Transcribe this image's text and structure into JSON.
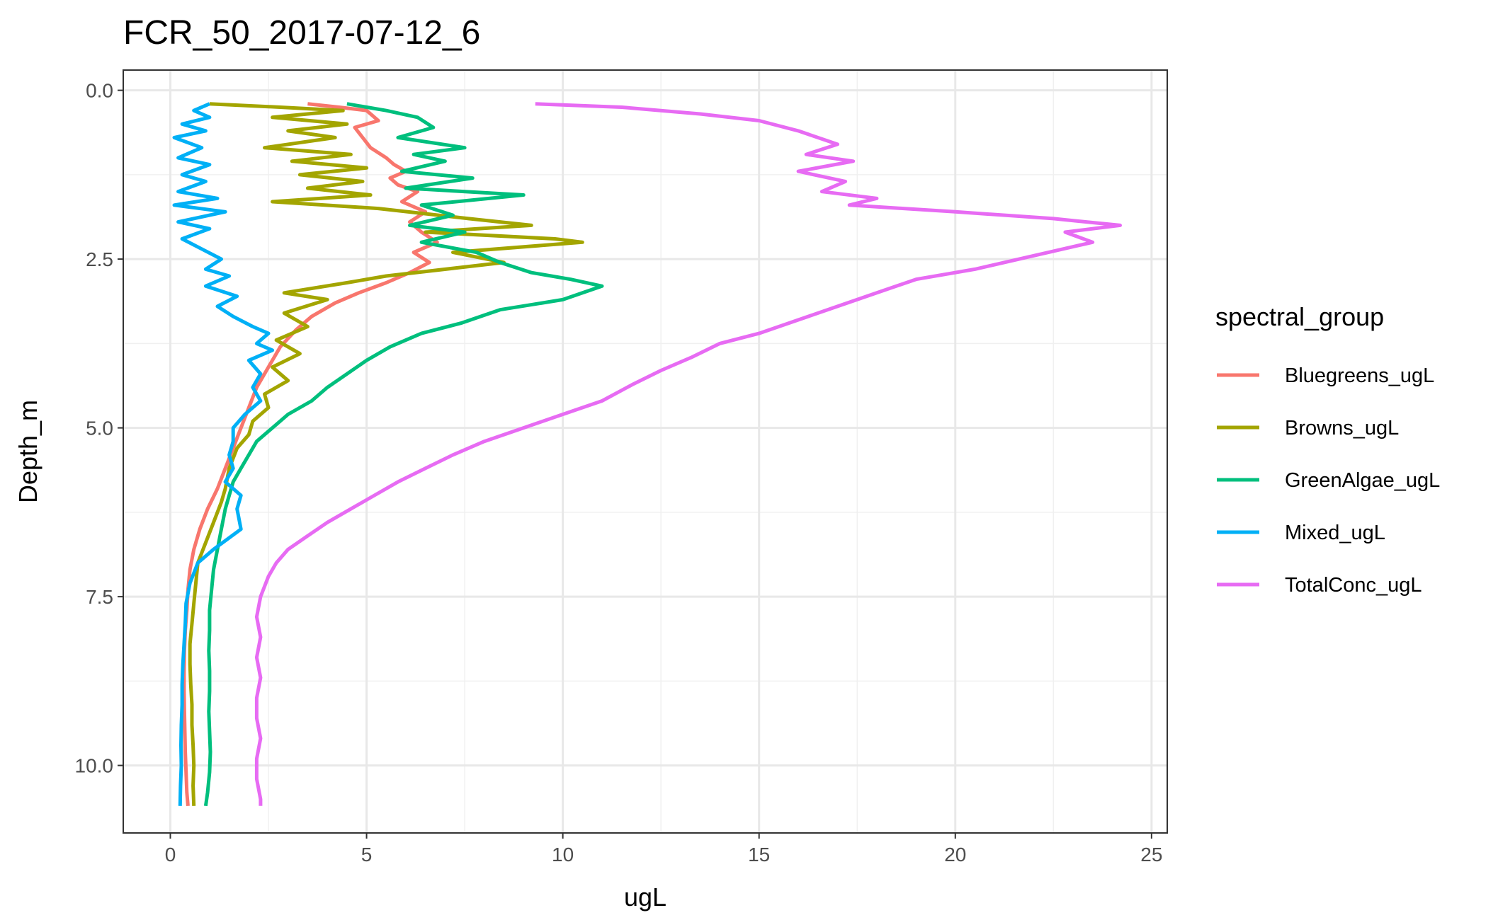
{
  "chart_data": {
    "type": "line",
    "title": "FCR_50_2017-07-12_6",
    "xlabel": "ugL",
    "ylabel": "Depth_m",
    "xlim": [
      -1.2,
      25.4
    ],
    "ylim": [
      11.0,
      -0.3
    ],
    "y_reversed": true,
    "x_ticks": [
      0,
      5,
      10,
      15,
      20,
      25
    ],
    "x_tick_labels": [
      "0",
      "5",
      "10",
      "15",
      "20",
      "25"
    ],
    "y_ticks": [
      0.0,
      2.5,
      5.0,
      7.5,
      10.0
    ],
    "y_tick_labels": [
      "0.0",
      "2.5",
      "5.0",
      "7.5",
      "10.0"
    ],
    "grid": true,
    "theme": "bw",
    "legend": {
      "title": "spectral_group",
      "position": "right"
    },
    "series": [
      {
        "name": "Bluegreens_ugL",
        "color": "#F8766D",
        "points": [
          [
            3.5,
            0.2
          ],
          [
            4.3,
            0.25
          ],
          [
            5.0,
            0.3
          ],
          [
            5.3,
            0.45
          ],
          [
            4.7,
            0.55
          ],
          [
            4.9,
            0.7
          ],
          [
            5.1,
            0.85
          ],
          [
            5.5,
            1.0
          ],
          [
            5.7,
            1.1
          ],
          [
            6.0,
            1.2
          ],
          [
            5.6,
            1.3
          ],
          [
            5.8,
            1.4
          ],
          [
            6.3,
            1.5
          ],
          [
            5.9,
            1.65
          ],
          [
            6.5,
            1.8
          ],
          [
            6.1,
            1.95
          ],
          [
            6.4,
            2.1
          ],
          [
            6.8,
            2.25
          ],
          [
            6.2,
            2.4
          ],
          [
            6.6,
            2.55
          ],
          [
            6.1,
            2.7
          ],
          [
            5.5,
            2.85
          ],
          [
            4.8,
            3.0
          ],
          [
            4.2,
            3.15
          ],
          [
            3.6,
            3.35
          ],
          [
            3.2,
            3.55
          ],
          [
            2.8,
            3.8
          ],
          [
            2.5,
            4.1
          ],
          [
            2.2,
            4.4
          ],
          [
            2.0,
            4.7
          ],
          [
            1.8,
            5.0
          ],
          [
            1.6,
            5.3
          ],
          [
            1.4,
            5.6
          ],
          [
            1.2,
            5.9
          ],
          [
            0.95,
            6.2
          ],
          [
            0.75,
            6.5
          ],
          [
            0.6,
            6.8
          ],
          [
            0.5,
            7.1
          ],
          [
            0.45,
            7.4
          ],
          [
            0.42,
            7.7
          ],
          [
            0.38,
            8.0
          ],
          [
            0.36,
            8.3
          ],
          [
            0.35,
            8.6
          ],
          [
            0.35,
            8.9
          ],
          [
            0.36,
            9.2
          ],
          [
            0.37,
            9.5
          ],
          [
            0.38,
            9.8
          ],
          [
            0.4,
            10.1
          ],
          [
            0.42,
            10.4
          ],
          [
            0.45,
            10.6
          ]
        ]
      },
      {
        "name": "Browns_ugL",
        "color": "#A3A500",
        "points": [
          [
            1.0,
            0.2
          ],
          [
            2.8,
            0.25
          ],
          [
            4.4,
            0.3
          ],
          [
            2.6,
            0.4
          ],
          [
            4.5,
            0.5
          ],
          [
            3.0,
            0.6
          ],
          [
            4.2,
            0.7
          ],
          [
            2.4,
            0.85
          ],
          [
            4.6,
            0.95
          ],
          [
            3.1,
            1.05
          ],
          [
            5.0,
            1.15
          ],
          [
            3.3,
            1.25
          ],
          [
            4.9,
            1.35
          ],
          [
            3.5,
            1.45
          ],
          [
            5.1,
            1.55
          ],
          [
            2.6,
            1.65
          ],
          [
            5.3,
            1.75
          ],
          [
            7.6,
            1.9
          ],
          [
            9.2,
            2.0
          ],
          [
            6.5,
            2.1
          ],
          [
            9.8,
            2.2
          ],
          [
            10.5,
            2.25
          ],
          [
            7.2,
            2.4
          ],
          [
            8.5,
            2.55
          ],
          [
            5.5,
            2.75
          ],
          [
            4.5,
            2.85
          ],
          [
            2.9,
            3.0
          ],
          [
            4.0,
            3.1
          ],
          [
            2.9,
            3.3
          ],
          [
            3.5,
            3.5
          ],
          [
            2.7,
            3.7
          ],
          [
            3.3,
            3.9
          ],
          [
            2.6,
            4.1
          ],
          [
            3.0,
            4.3
          ],
          [
            2.4,
            4.5
          ],
          [
            2.5,
            4.7
          ],
          [
            2.1,
            4.9
          ],
          [
            2.0,
            5.1
          ],
          [
            1.7,
            5.3
          ],
          [
            1.5,
            5.6
          ],
          [
            1.4,
            5.9
          ],
          [
            1.3,
            6.1
          ],
          [
            1.1,
            6.4
          ],
          [
            0.9,
            6.7
          ],
          [
            0.7,
            7.0
          ],
          [
            0.65,
            7.3
          ],
          [
            0.6,
            7.6
          ],
          [
            0.55,
            7.9
          ],
          [
            0.5,
            8.2
          ],
          [
            0.5,
            8.5
          ],
          [
            0.52,
            8.8
          ],
          [
            0.55,
            9.1
          ],
          [
            0.55,
            9.4
          ],
          [
            0.58,
            9.7
          ],
          [
            0.6,
            10.0
          ],
          [
            0.58,
            10.3
          ],
          [
            0.6,
            10.6
          ]
        ]
      },
      {
        "name": "GreenAlgae_ugL",
        "color": "#00BF7D",
        "points": [
          [
            4.5,
            0.2
          ],
          [
            5.5,
            0.3
          ],
          [
            6.3,
            0.4
          ],
          [
            6.7,
            0.55
          ],
          [
            5.8,
            0.7
          ],
          [
            7.5,
            0.85
          ],
          [
            6.2,
            0.95
          ],
          [
            7.0,
            1.05
          ],
          [
            5.9,
            1.2
          ],
          [
            7.7,
            1.3
          ],
          [
            6.0,
            1.45
          ],
          [
            9.0,
            1.55
          ],
          [
            6.4,
            1.7
          ],
          [
            7.2,
            1.85
          ],
          [
            6.1,
            2.0
          ],
          [
            7.5,
            2.1
          ],
          [
            6.4,
            2.25
          ],
          [
            7.8,
            2.4
          ],
          [
            8.4,
            2.55
          ],
          [
            9.2,
            2.7
          ],
          [
            10.2,
            2.8
          ],
          [
            11.0,
            2.9
          ],
          [
            10.0,
            3.1
          ],
          [
            8.4,
            3.25
          ],
          [
            7.4,
            3.45
          ],
          [
            6.4,
            3.6
          ],
          [
            5.6,
            3.8
          ],
          [
            5.0,
            4.0
          ],
          [
            4.5,
            4.2
          ],
          [
            4.0,
            4.4
          ],
          [
            3.6,
            4.6
          ],
          [
            3.0,
            4.8
          ],
          [
            2.6,
            5.0
          ],
          [
            2.2,
            5.2
          ],
          [
            2.0,
            5.4
          ],
          [
            1.8,
            5.6
          ],
          [
            1.6,
            5.8
          ],
          [
            1.5,
            6.0
          ],
          [
            1.4,
            6.2
          ],
          [
            1.3,
            6.5
          ],
          [
            1.2,
            6.8
          ],
          [
            1.1,
            7.1
          ],
          [
            1.05,
            7.4
          ],
          [
            1.0,
            7.7
          ],
          [
            1.0,
            8.0
          ],
          [
            0.98,
            8.3
          ],
          [
            1.0,
            8.6
          ],
          [
            1.0,
            8.9
          ],
          [
            0.98,
            9.2
          ],
          [
            1.0,
            9.5
          ],
          [
            1.02,
            9.8
          ],
          [
            1.0,
            10.1
          ],
          [
            0.95,
            10.4
          ],
          [
            0.9,
            10.6
          ]
        ]
      },
      {
        "name": "Mixed_ugL",
        "color": "#00B0F6",
        "points": [
          [
            1.0,
            0.2
          ],
          [
            0.6,
            0.3
          ],
          [
            1.0,
            0.4
          ],
          [
            0.3,
            0.5
          ],
          [
            0.9,
            0.6
          ],
          [
            0.1,
            0.7
          ],
          [
            0.8,
            0.85
          ],
          [
            0.2,
            1.0
          ],
          [
            1.0,
            1.1
          ],
          [
            0.3,
            1.25
          ],
          [
            0.9,
            1.35
          ],
          [
            0.2,
            1.5
          ],
          [
            1.2,
            1.6
          ],
          [
            0.1,
            1.7
          ],
          [
            1.4,
            1.8
          ],
          [
            0.2,
            1.95
          ],
          [
            1.0,
            2.05
          ],
          [
            0.3,
            2.2
          ],
          [
            0.8,
            2.35
          ],
          [
            1.3,
            2.5
          ],
          [
            0.9,
            2.65
          ],
          [
            1.5,
            2.75
          ],
          [
            0.9,
            2.9
          ],
          [
            1.7,
            3.05
          ],
          [
            1.2,
            3.2
          ],
          [
            1.6,
            3.35
          ],
          [
            2.1,
            3.5
          ],
          [
            2.5,
            3.6
          ],
          [
            2.2,
            3.75
          ],
          [
            2.6,
            3.85
          ],
          [
            2.0,
            4.0
          ],
          [
            2.3,
            4.2
          ],
          [
            2.1,
            4.4
          ],
          [
            2.3,
            4.6
          ],
          [
            1.9,
            4.8
          ],
          [
            1.6,
            5.0
          ],
          [
            1.6,
            5.2
          ],
          [
            1.5,
            5.4
          ],
          [
            1.6,
            5.6
          ],
          [
            1.4,
            5.8
          ],
          [
            1.8,
            6.0
          ],
          [
            1.7,
            6.2
          ],
          [
            1.8,
            6.5
          ],
          [
            1.1,
            6.8
          ],
          [
            0.7,
            7.0
          ],
          [
            0.5,
            7.3
          ],
          [
            0.4,
            7.6
          ],
          [
            0.38,
            7.9
          ],
          [
            0.35,
            8.2
          ],
          [
            0.32,
            8.5
          ],
          [
            0.3,
            8.8
          ],
          [
            0.3,
            9.1
          ],
          [
            0.28,
            9.4
          ],
          [
            0.27,
            9.7
          ],
          [
            0.28,
            10.0
          ],
          [
            0.26,
            10.3
          ],
          [
            0.25,
            10.6
          ]
        ]
      },
      {
        "name": "TotalConc_ugL",
        "color": "#E76BF3",
        "points": [
          [
            9.3,
            0.2
          ],
          [
            11.5,
            0.25
          ],
          [
            13.5,
            0.35
          ],
          [
            15.0,
            0.45
          ],
          [
            16.0,
            0.6
          ],
          [
            17.0,
            0.8
          ],
          [
            16.2,
            0.95
          ],
          [
            17.4,
            1.05
          ],
          [
            16.0,
            1.2
          ],
          [
            17.2,
            1.35
          ],
          [
            16.6,
            1.5
          ],
          [
            18.0,
            1.6
          ],
          [
            17.3,
            1.7
          ],
          [
            20.0,
            1.8
          ],
          [
            22.5,
            1.9
          ],
          [
            24.2,
            2.0
          ],
          [
            22.8,
            2.1
          ],
          [
            23.5,
            2.25
          ],
          [
            22.0,
            2.45
          ],
          [
            20.5,
            2.65
          ],
          [
            19.0,
            2.8
          ],
          [
            18.0,
            3.0
          ],
          [
            17.0,
            3.2
          ],
          [
            16.0,
            3.4
          ],
          [
            15.0,
            3.6
          ],
          [
            14.0,
            3.75
          ],
          [
            13.3,
            3.95
          ],
          [
            12.5,
            4.15
          ],
          [
            11.8,
            4.35
          ],
          [
            11.0,
            4.6
          ],
          [
            10.0,
            4.8
          ],
          [
            9.0,
            5.0
          ],
          [
            8.0,
            5.2
          ],
          [
            7.2,
            5.4
          ],
          [
            6.5,
            5.6
          ],
          [
            5.8,
            5.8
          ],
          [
            5.2,
            6.0
          ],
          [
            4.6,
            6.2
          ],
          [
            4.0,
            6.4
          ],
          [
            3.5,
            6.6
          ],
          [
            3.0,
            6.8
          ],
          [
            2.7,
            7.0
          ],
          [
            2.5,
            7.2
          ],
          [
            2.3,
            7.5
          ],
          [
            2.2,
            7.8
          ],
          [
            2.3,
            8.1
          ],
          [
            2.2,
            8.4
          ],
          [
            2.3,
            8.7
          ],
          [
            2.2,
            9.0
          ],
          [
            2.2,
            9.3
          ],
          [
            2.3,
            9.6
          ],
          [
            2.2,
            9.9
          ],
          [
            2.2,
            10.2
          ],
          [
            2.3,
            10.5
          ],
          [
            2.3,
            10.6
          ]
        ]
      }
    ]
  }
}
